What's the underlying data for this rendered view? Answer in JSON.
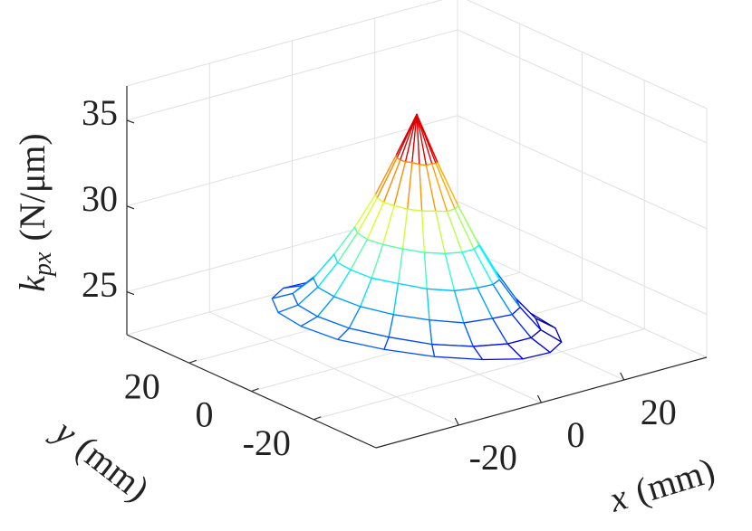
{
  "chart_data": {
    "type": "mesh3d",
    "xlabel": {
      "symbol": "x",
      "unit": "(mm)"
    },
    "ylabel": {
      "symbol": "y",
      "unit": "(mm)"
    },
    "zlabel": {
      "symbol": "k",
      "subscript": "px",
      "unit": "(N/μm)"
    },
    "r": [
      0,
      4,
      8,
      12,
      16,
      20,
      24,
      28
    ],
    "theta": [
      0,
      20,
      40,
      60,
      80,
      100,
      120,
      140,
      160,
      180,
      200,
      220,
      240,
      260,
      280,
      300,
      320,
      340
    ],
    "z": [
      [
        36,
        36,
        36,
        36,
        36,
        36,
        36,
        36,
        36,
        36,
        36,
        36,
        36,
        36,
        36,
        36,
        36,
        36
      ],
      [
        33.2,
        33.2,
        33.2,
        33.3,
        33.4,
        33.4,
        33.5,
        33.6,
        33.6,
        33.6,
        33.6,
        33.6,
        33.5,
        33.4,
        33.4,
        33.3,
        33.2,
        33.2
      ],
      [
        30.6,
        30.6,
        30.7,
        30.8,
        30.9,
        31.1,
        31.2,
        31.3,
        31.4,
        31.4,
        31.4,
        31.3,
        31.2,
        31.1,
        30.9,
        30.8,
        30.7,
        30.6
      ],
      [
        28.3,
        28.3,
        28.4,
        28.6,
        28.8,
        29.0,
        29.2,
        29.4,
        29.5,
        29.5,
        29.5,
        29.4,
        29.2,
        29.0,
        28.8,
        28.6,
        28.4,
        28.3
      ],
      [
        26.2,
        26.3,
        26.4,
        26.7,
        27.0,
        27.2,
        27.5,
        27.8,
        27.9,
        28.0,
        27.9,
        27.8,
        27.5,
        27.2,
        27.0,
        26.7,
        26.4,
        26.3
      ],
      [
        24.5,
        24.6,
        24.8,
        25.1,
        25.5,
        25.7,
        26.1,
        26.4,
        26.6,
        26.7,
        26.6,
        26.4,
        26.1,
        25.7,
        25.5,
        25.1,
        24.8,
        24.6
      ],
      [
        23.2,
        23.3,
        23.5,
        23.9,
        24.3,
        24.7,
        25.1,
        25.5,
        25.7,
        25.8,
        25.7,
        25.5,
        25.1,
        24.7,
        24.3,
        23.9,
        23.5,
        23.3
      ],
      [
        22.5,
        22.6,
        22.8,
        23.2,
        23.7,
        24.3,
        24.8,
        25.2,
        25.4,
        25.5,
        25.4,
        25.2,
        24.8,
        24.3,
        23.7,
        23.2,
        22.8,
        22.6
      ]
    ],
    "xlim": [
      -40,
      40
    ],
    "ylim": [
      -40,
      40
    ],
    "zlim": [
      22.5,
      37
    ],
    "xticks": [
      -20,
      0,
      20
    ],
    "yticks": [
      -20,
      0,
      20
    ],
    "zticks": [
      25,
      30,
      35
    ],
    "grid": true,
    "colormap": "jet"
  }
}
